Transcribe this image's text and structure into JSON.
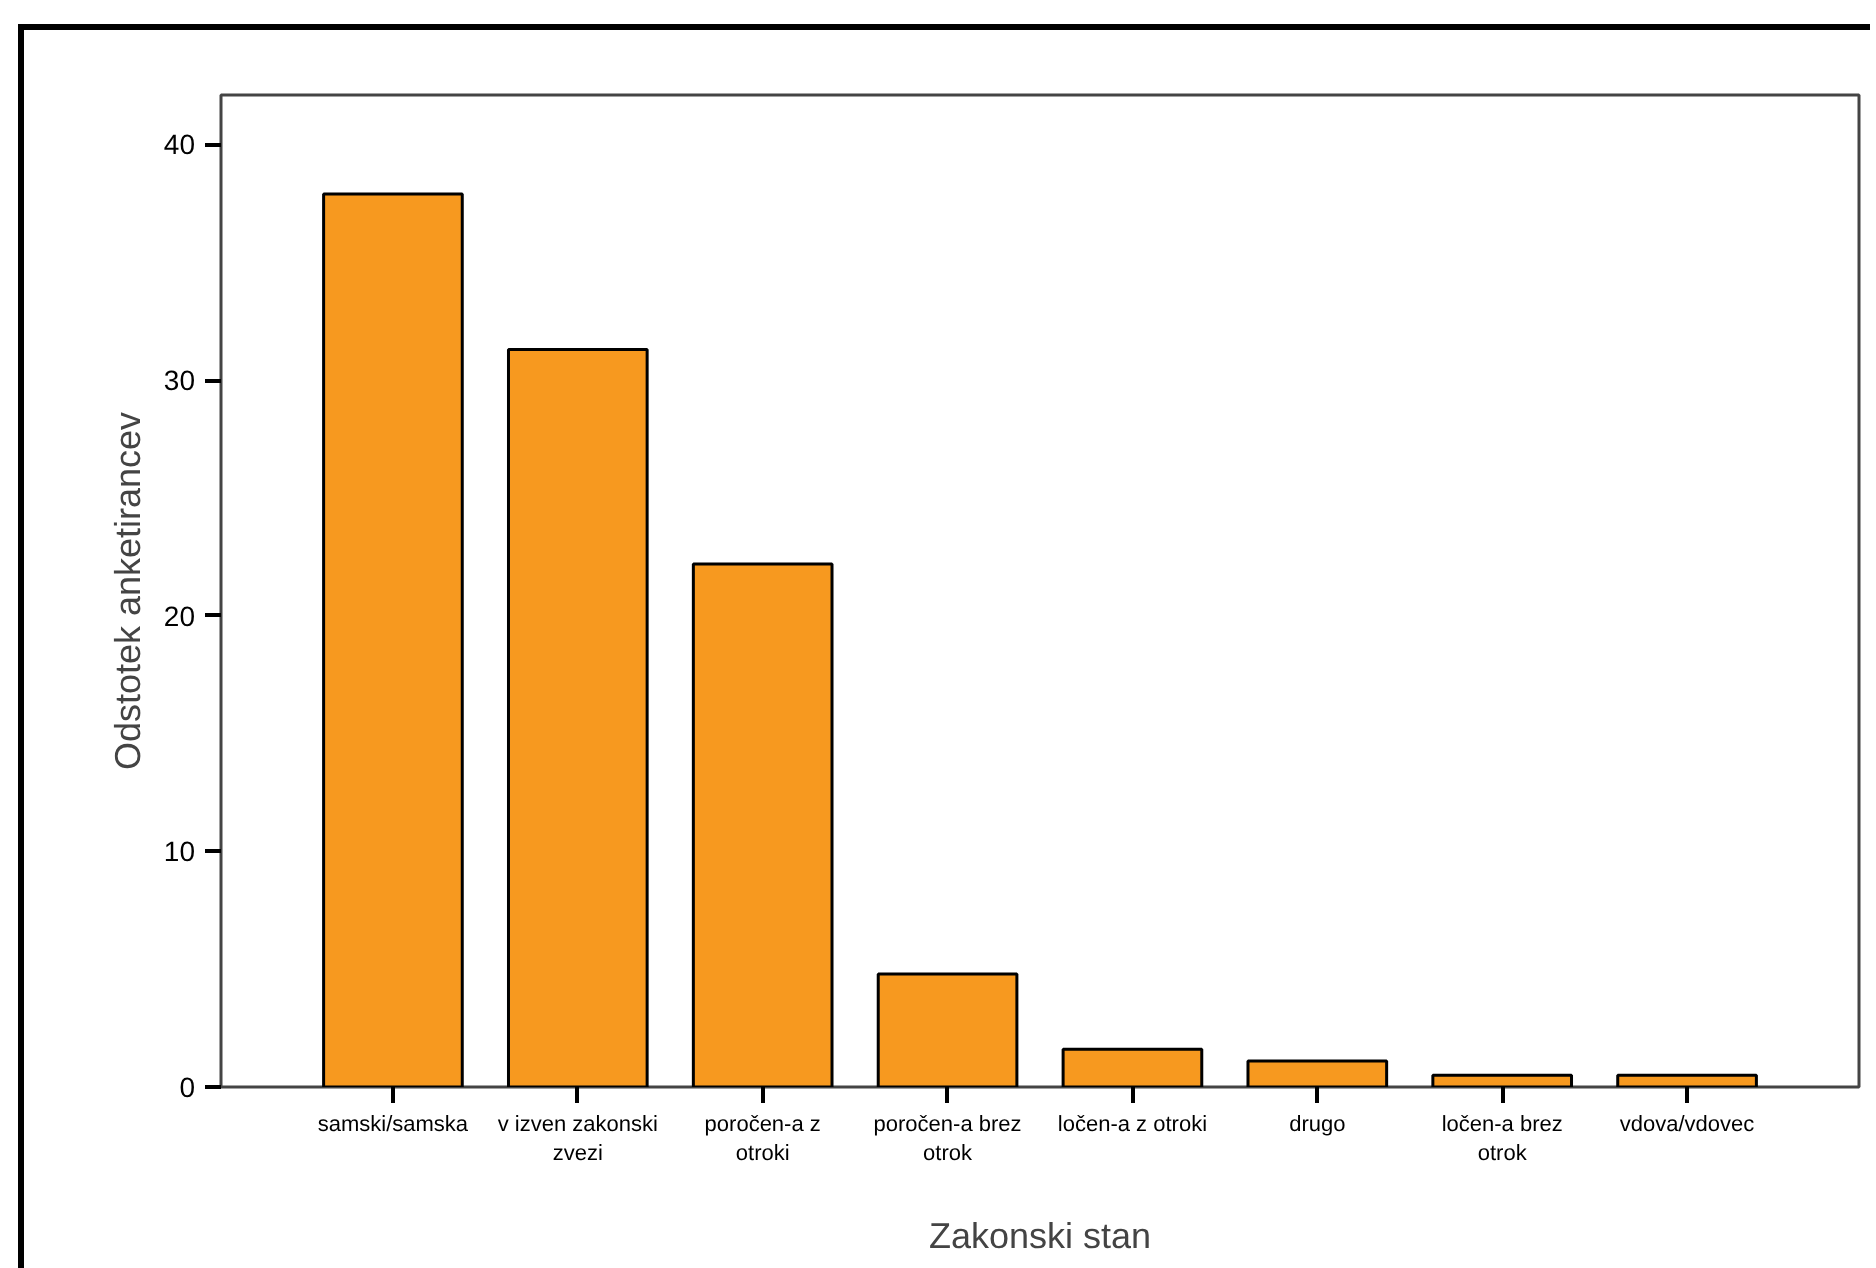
{
  "chart_data": {
    "type": "bar",
    "xlabel": "Zakonski stan",
    "ylabel": "Odstotek anketirancev",
    "categories": [
      "samski/samska",
      "v izven zakonski zvezi",
      "poročen-a z otroki",
      "poročen-a brez otrok",
      "ločen-a z otroki",
      "drugo",
      "ločen-a brez otrok",
      "vdova/vdovec"
    ],
    "values": [
      37.9,
      31.3,
      22.2,
      4.8,
      1.6,
      1.1,
      0.5,
      0.5
    ],
    "color": "#f7991f",
    "ylim": [
      0,
      42.1
    ],
    "yticks": [
      0,
      10,
      20,
      30,
      40
    ],
    "grid": false
  }
}
